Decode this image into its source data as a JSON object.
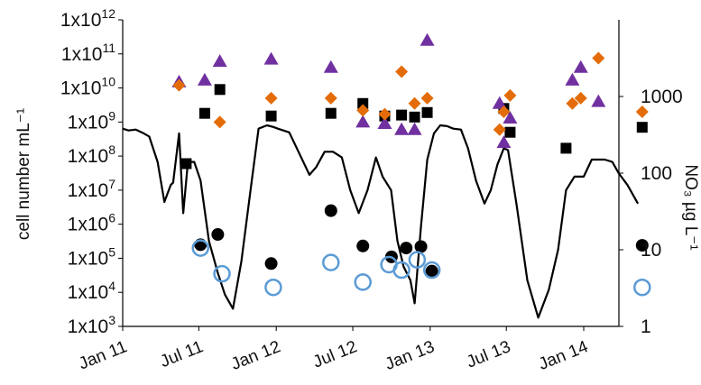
{
  "chart_data": {
    "type": "scatter",
    "xlabel": "",
    "ylabel": "cell number mL⁻¹",
    "y2label": "NO₃ µg L⁻¹",
    "y_scale": "log",
    "y2_scale": "log",
    "ylim": [
      "1e3",
      "1e12"
    ],
    "y2lim": [
      1,
      10000
    ],
    "x_tick_labels": [
      "Jan 11",
      "Jul 11",
      "Jan 12",
      "Jul 12",
      "Jan 13",
      "Jul 13",
      "Jan 14"
    ],
    "y_tick_labels": [
      "1x10^3",
      "1x10^4",
      "1x10^5",
      "1x10^6",
      "1x10^7",
      "1x10^8",
      "1x10^9",
      "1x10^10",
      "1x10^11",
      "1x10^12"
    ],
    "y2_tick_labels": [
      "1",
      "10",
      "100",
      "1000"
    ],
    "grid": false,
    "legend": "none",
    "colors": {
      "black_square": "#000000",
      "purple_triangle": "#7030a0",
      "orange_diamond": "#e36c09",
      "black_circle": "#000000",
      "blue_open_circle": "#5b9bd5",
      "nitrate_line": "#000000"
    },
    "series": [
      {
        "marker": "black-square",
        "x": [
          "2011-06-01",
          "2011-07-15",
          "2011-08-20",
          "2011-12-20",
          "2012-05-10",
          "2012-07-25",
          "2012-09-15",
          "2012-10-25",
          "2012-11-25",
          "2012-12-25",
          "2013-06-25",
          "2013-07-10",
          "2013-11-20",
          "2014-05-20"
        ],
        "y": [
          60000000.0,
          1800000000.0,
          9000000000.0,
          1500000000.0,
          1800000000.0,
          3500000000.0,
          1500000000.0,
          1600000000.0,
          1400000000.0,
          1900000000.0,
          2500000000.0,
          500000000.0,
          170000000.0,
          700000000.0
        ]
      },
      {
        "marker": "purple-triangle",
        "x": [
          "2011-05-15",
          "2011-07-15",
          "2011-08-20",
          "2011-12-20",
          "2012-05-10",
          "2012-07-25",
          "2012-09-15",
          "2012-10-25",
          "2012-11-25",
          "2012-12-25",
          "2013-06-15",
          "2013-06-25",
          "2013-07-10",
          "2013-12-05",
          "2013-12-25",
          "2014-02-05"
        ],
        "y": [
          15000000000.0,
          17000000000.0,
          60000000000.0,
          70000000000.0,
          40000000000.0,
          1000000000.0,
          900000000.0,
          600000000.0,
          600000000.0,
          250000000000.0,
          3500000000.0,
          250000000.0,
          1300000000.0,
          17000000000.0,
          40000000000.0,
          4000000000.0
        ]
      },
      {
        "marker": "orange-diamond",
        "x": [
          "2011-05-15",
          "2011-08-20",
          "2011-12-20",
          "2012-05-10",
          "2012-07-25",
          "2012-09-15",
          "2012-10-25",
          "2012-11-25",
          "2012-12-25",
          "2013-06-15",
          "2013-06-25",
          "2013-07-10",
          "2013-12-05",
          "2013-12-25",
          "2014-02-05",
          "2014-05-20"
        ],
        "y": [
          12000000000.0,
          1000000000.0,
          5000000000.0,
          5000000000.0,
          2200000000.0,
          1700000000.0,
          30000000000.0,
          3500000000.0,
          5000000000.0,
          600000000.0,
          2000000000.0,
          6000000000.0,
          3500000000.0,
          5000000000.0,
          75000000000.0,
          2000000000.0
        ]
      },
      {
        "marker": "black-circle",
        "x": [
          "2011-07-05",
          "2011-08-15",
          "2011-12-20",
          "2012-05-10",
          "2012-07-25",
          "2012-10-01",
          "2012-11-05",
          "2012-12-10",
          "2013-01-05",
          "2014-05-20"
        ],
        "y": [
          250000.0,
          500000.0,
          70000.0,
          2500000.0,
          230000.0,
          110000.0,
          200000.0,
          220000.0,
          42000.0,
          240000.0
        ]
      },
      {
        "marker": "blue-open-circle",
        "x": [
          "2011-07-05",
          "2011-08-25",
          "2011-12-25",
          "2012-05-10",
          "2012-07-25",
          "2012-09-25",
          "2012-10-25",
          "2012-12-01",
          "2013-01-05",
          "2014-05-20"
        ],
        "y": [
          200000.0,
          35000.0,
          14000.0,
          75000.0,
          20000.0,
          65000.0,
          45000.0,
          90000.0,
          45000.0,
          14000.0
        ]
      },
      {
        "type": "line",
        "axis": "y2",
        "x": [
          "2011-01-01",
          "2011-01-15",
          "2011-02-01",
          "2011-02-20",
          "2011-03-05",
          "2011-03-25",
          "2011-04-10",
          "2011-04-25",
          "2011-05-01",
          "2011-05-15",
          "2011-05-25",
          "2011-06-05",
          "2011-06-20",
          "2011-07-05",
          "2011-07-25",
          "2011-08-15",
          "2011-09-01",
          "2011-09-20",
          "2011-10-10",
          "2011-11-01",
          "2011-11-20",
          "2011-12-10",
          "2011-12-25",
          "2012-01-05",
          "2012-02-01",
          "2012-02-25",
          "2012-03-20",
          "2012-04-05",
          "2012-04-25",
          "2012-05-15",
          "2012-06-05",
          "2012-06-25",
          "2012-07-15",
          "2012-08-05",
          "2012-08-25",
          "2012-09-10",
          "2012-09-30",
          "2012-10-15",
          "2012-10-30",
          "2012-11-15",
          "2012-11-25",
          "2012-12-10",
          "2012-12-25",
          "2013-01-10",
          "2013-01-25",
          "2013-02-10",
          "2013-02-25",
          "2013-03-15",
          "2013-04-01",
          "2013-04-20",
          "2013-05-10",
          "2013-05-25",
          "2013-06-10",
          "2013-06-25",
          "2013-07-05",
          "2013-07-25",
          "2013-08-20",
          "2013-09-15",
          "2013-10-10",
          "2013-11-01",
          "2013-11-20",
          "2013-12-10",
          "2014-01-01",
          "2014-01-20",
          "2014-02-05",
          "2014-02-20",
          "2014-03-10",
          "2014-03-25",
          "2014-04-15",
          "2014-05-10"
        ],
        "y": [
          380,
          360,
          370,
          330,
          300,
          140,
          42,
          70,
          75,
          330,
          30,
          140,
          140,
          80,
          13,
          5,
          2.6,
          1.7,
          7,
          60,
          380,
          420,
          400,
          380,
          340,
          180,
          95,
          120,
          190,
          190,
          160,
          60,
          30,
          60,
          160,
          90,
          60,
          13,
          6,
          4,
          2,
          20,
          150,
          330,
          420,
          410,
          380,
          370,
          210,
          80,
          40,
          60,
          130,
          210,
          200,
          40,
          4,
          1.3,
          3,
          10,
          60,
          90,
          90,
          150,
          150,
          150,
          140,
          100,
          70,
          40
        ]
      }
    ]
  }
}
